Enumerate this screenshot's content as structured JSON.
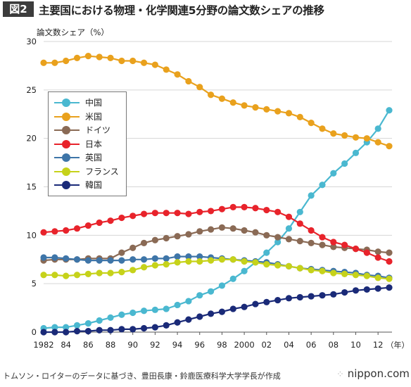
{
  "header": {
    "figure_badge": "図2",
    "title": "主要国における物理・化学関連5分野の論文数シェアの推移"
  },
  "footer": {
    "source": "トムソン・ロイターのデータに基づき、豊田長康・鈴鹿医療科学大学学長が作成",
    "brand_text": "nippon.com",
    "brand_mark": "⁘"
  },
  "chart_data": {
    "type": "line",
    "ylabel": "論文数シェア（%）",
    "x_unit_label": "（年）",
    "ylim": [
      0,
      30
    ],
    "yticks": [
      0,
      5,
      10,
      15,
      20,
      25,
      30
    ],
    "xlim": [
      1982,
      2013
    ],
    "xticks": [
      1982,
      1984,
      1986,
      1988,
      1990,
      1992,
      1994,
      1996,
      1998,
      2000,
      2002,
      2004,
      2006,
      2008,
      2010,
      2012
    ],
    "xtick_labels": [
      "1982",
      "84",
      "86",
      "88",
      "90",
      "92",
      "94",
      "96",
      "98",
      "2000",
      "02",
      "04",
      "06",
      "08",
      "10",
      "12"
    ],
    "grid": "horizontal",
    "legend_position": "left",
    "x": [
      1982,
      1983,
      1984,
      1985,
      1986,
      1987,
      1988,
      1989,
      1990,
      1991,
      1992,
      1993,
      1994,
      1995,
      1996,
      1997,
      1998,
      1999,
      2000,
      2001,
      2002,
      2003,
      2004,
      2005,
      2006,
      2007,
      2008,
      2009,
      2010,
      2011,
      2012,
      2013
    ],
    "series": [
      {
        "name": "中国",
        "color": "#4ab8d0",
        "values": [
          0.4,
          0.5,
          0.5,
          0.7,
          0.9,
          1.2,
          1.5,
          1.8,
          2.0,
          2.2,
          2.3,
          2.4,
          2.8,
          3.2,
          3.8,
          4.2,
          4.8,
          5.5,
          6.3,
          7.2,
          8.2,
          9.3,
          10.7,
          12.4,
          14.1,
          15.2,
          16.4,
          17.4,
          18.5,
          19.6,
          21.0,
          22.9
        ]
      },
      {
        "name": "米国",
        "color": "#e9a11d",
        "values": [
          27.8,
          27.8,
          28.0,
          28.3,
          28.5,
          28.4,
          28.3,
          28.0,
          28.0,
          27.8,
          27.6,
          27.1,
          26.6,
          25.9,
          25.3,
          24.5,
          24.1,
          23.7,
          23.4,
          23.2,
          23.0,
          22.8,
          22.6,
          22.2,
          21.6,
          21.0,
          20.5,
          20.3,
          20.1,
          20.0,
          19.6,
          19.2
        ]
      },
      {
        "name": "ドイツ",
        "color": "#8a6a55",
        "values": [
          7.4,
          7.5,
          7.5,
          7.5,
          7.6,
          7.6,
          7.6,
          8.2,
          8.7,
          9.2,
          9.5,
          9.7,
          9.9,
          10.1,
          10.4,
          10.6,
          10.8,
          10.7,
          10.5,
          10.3,
          10.0,
          9.8,
          9.6,
          9.4,
          9.2,
          9.0,
          8.8,
          8.7,
          8.6,
          8.5,
          8.3,
          8.2
        ]
      },
      {
        "name": "日本",
        "color": "#e8232b",
        "values": [
          10.3,
          10.4,
          10.5,
          10.7,
          11.0,
          11.3,
          11.5,
          11.8,
          12.0,
          12.2,
          12.3,
          12.3,
          12.3,
          12.2,
          12.4,
          12.5,
          12.7,
          12.9,
          12.9,
          12.8,
          12.6,
          12.4,
          11.9,
          11.2,
          10.5,
          9.8,
          9.3,
          9.0,
          8.6,
          8.2,
          7.7,
          7.3
        ]
      },
      {
        "name": "英国",
        "color": "#3e75a8",
        "values": [
          7.7,
          7.7,
          7.6,
          7.5,
          7.4,
          7.4,
          7.4,
          7.4,
          7.5,
          7.5,
          7.6,
          7.6,
          7.8,
          7.8,
          7.8,
          7.7,
          7.6,
          7.5,
          7.4,
          7.3,
          7.2,
          7.0,
          6.8,
          6.6,
          6.5,
          6.4,
          6.3,
          6.2,
          6.1,
          5.9,
          5.8,
          5.6
        ]
      },
      {
        "name": "フランス",
        "color": "#c6d21a",
        "values": [
          5.9,
          5.9,
          5.8,
          5.9,
          6.0,
          6.1,
          6.1,
          6.2,
          6.4,
          6.7,
          6.9,
          7.0,
          7.2,
          7.3,
          7.3,
          7.4,
          7.5,
          7.5,
          7.3,
          7.2,
          7.0,
          6.9,
          6.8,
          6.6,
          6.4,
          6.3,
          6.1,
          6.0,
          5.9,
          5.8,
          5.6,
          5.5
        ]
      },
      {
        "name": "韓国",
        "color": "#1a2a78",
        "values": [
          0.0,
          0.0,
          0.0,
          0.1,
          0.1,
          0.2,
          0.2,
          0.3,
          0.3,
          0.4,
          0.5,
          0.7,
          1.0,
          1.3,
          1.6,
          1.9,
          2.1,
          2.4,
          2.6,
          2.9,
          3.1,
          3.3,
          3.5,
          3.6,
          3.7,
          3.8,
          3.9,
          4.1,
          4.3,
          4.4,
          4.5,
          4.6
        ]
      }
    ]
  }
}
